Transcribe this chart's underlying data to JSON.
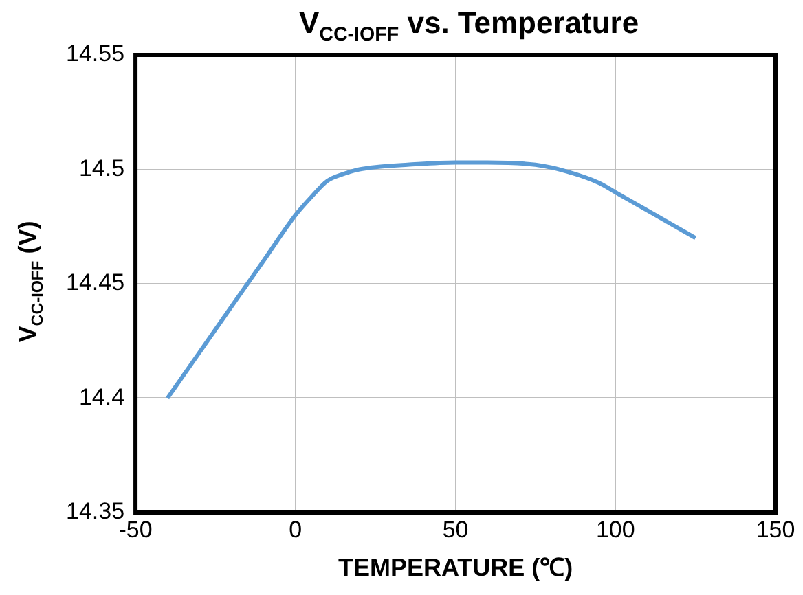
{
  "chart_data": {
    "type": "line",
    "title": "V$_{CC-IOFF}$ vs. Temperature",
    "xlabel": "TEMPERATURE (℃)",
    "ylabel": "V$_{CC-IOFF}$ (V)",
    "x": [
      -40,
      -30,
      -20,
      -10,
      0,
      5,
      10,
      15,
      20,
      25,
      35,
      50,
      60,
      75,
      85,
      95,
      100,
      110,
      125
    ],
    "series": [
      {
        "color": "#5b9bd5",
        "values": [
          14.4,
          14.42,
          14.44,
          14.46,
          14.48,
          14.488,
          14.495,
          14.498,
          14.5,
          14.501,
          14.502,
          14.503,
          14.503,
          14.502,
          14.499,
          14.494,
          14.49,
          14.482,
          14.47
        ]
      }
    ],
    "xlim": [
      -50,
      150
    ],
    "xticks": [
      -50,
      0,
      50,
      100,
      150
    ],
    "ylim": [
      14.35,
      14.55
    ],
    "yticks": [
      14.35,
      14.4,
      14.45,
      14.5,
      14.55
    ],
    "grid": true,
    "legend": false,
    "marker": "none",
    "line_style": "solid"
  }
}
